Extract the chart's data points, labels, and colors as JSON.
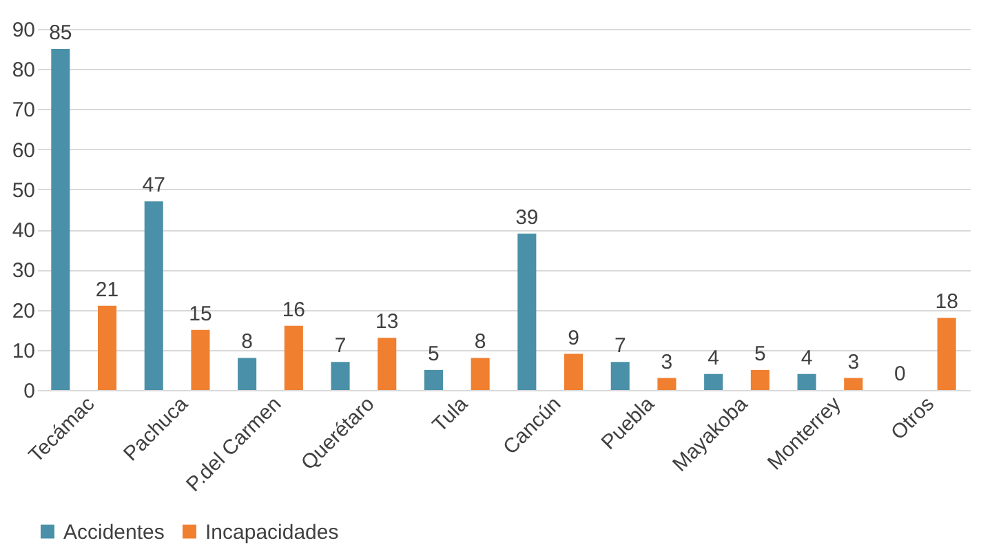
{
  "chart_data": {
    "type": "bar",
    "categories": [
      "Tecámac",
      "Pachuca",
      "P.del Carmen",
      "Querétaro",
      "Tula",
      "Cancún",
      "Puebla",
      "Mayakoba",
      "Monterrey",
      "Otros"
    ],
    "series": [
      {
        "name": "Accidentes",
        "color": "#4a90a8",
        "values": [
          85,
          47,
          8,
          7,
          5,
          39,
          7,
          4,
          4,
          0
        ]
      },
      {
        "name": "Incapacidades",
        "color": "#f07f30",
        "values": [
          21,
          15,
          16,
          13,
          8,
          9,
          3,
          5,
          3,
          18
        ]
      }
    ],
    "ylim": [
      0,
      90
    ],
    "yticks": [
      0,
      10,
      20,
      30,
      40,
      50,
      60,
      70,
      80,
      90
    ],
    "grid": "y",
    "legend": "bottom",
    "data_labels": true
  }
}
